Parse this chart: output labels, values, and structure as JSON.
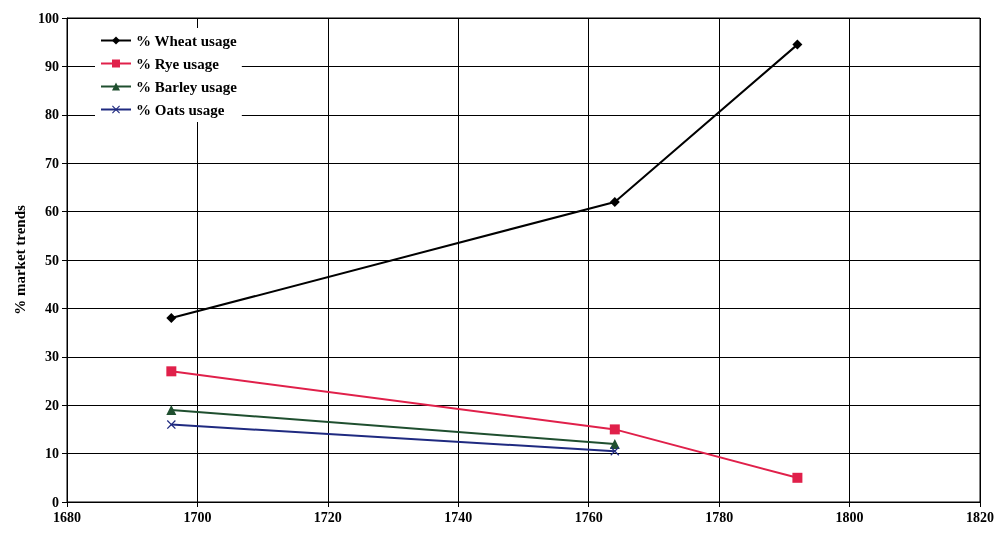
{
  "chart_data": {
    "type": "line",
    "ylabel": "% market trends",
    "xlim": [
      1680,
      1820
    ],
    "xticks": [
      1680,
      1700,
      1720,
      1740,
      1760,
      1780,
      1800,
      1820
    ],
    "ylim": [
      0,
      100
    ],
    "yticks": [
      0,
      10,
      20,
      30,
      40,
      50,
      60,
      70,
      80,
      90,
      100
    ],
    "grid": true,
    "legend": "top left",
    "series": [
      {
        "name": "% Wheat usage",
        "color": "#000000",
        "marker": "diamond",
        "x": [
          1696,
          1764,
          1792
        ],
        "values": [
          38,
          62,
          94.5
        ]
      },
      {
        "name": "% Rye usage",
        "color": "#e0204a",
        "marker": "square",
        "x": [
          1696,
          1764,
          1792
        ],
        "values": [
          27,
          15,
          5
        ]
      },
      {
        "name": "% Barley usage",
        "color": "#1f4f2f",
        "marker": "triangle",
        "x": [
          1696,
          1764
        ],
        "values": [
          19,
          12
        ]
      },
      {
        "name": "% Oats usage",
        "color": "#1f2a80",
        "marker": "cross",
        "x": [
          1696,
          1764
        ],
        "values": [
          16,
          10.5
        ]
      }
    ]
  }
}
